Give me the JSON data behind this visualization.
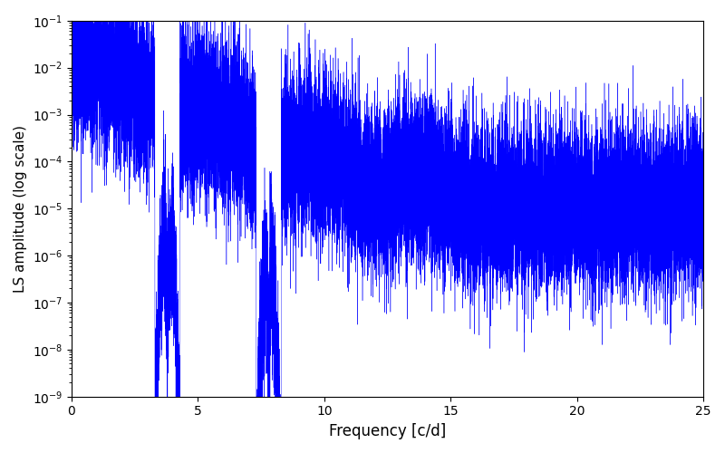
{
  "xlabel": "Frequency [c/d]",
  "ylabel": "LS amplitude (log scale)",
  "line_color": "#0000ff",
  "xlim": [
    0,
    25
  ],
  "ylim": [
    1e-09,
    0.1
  ],
  "background_color": "#ffffff",
  "figsize": [
    8.0,
    5.0
  ],
  "dpi": 100,
  "freq_max": 25.0,
  "n_points": 50000,
  "seed": 123,
  "linewidth": 0.3
}
